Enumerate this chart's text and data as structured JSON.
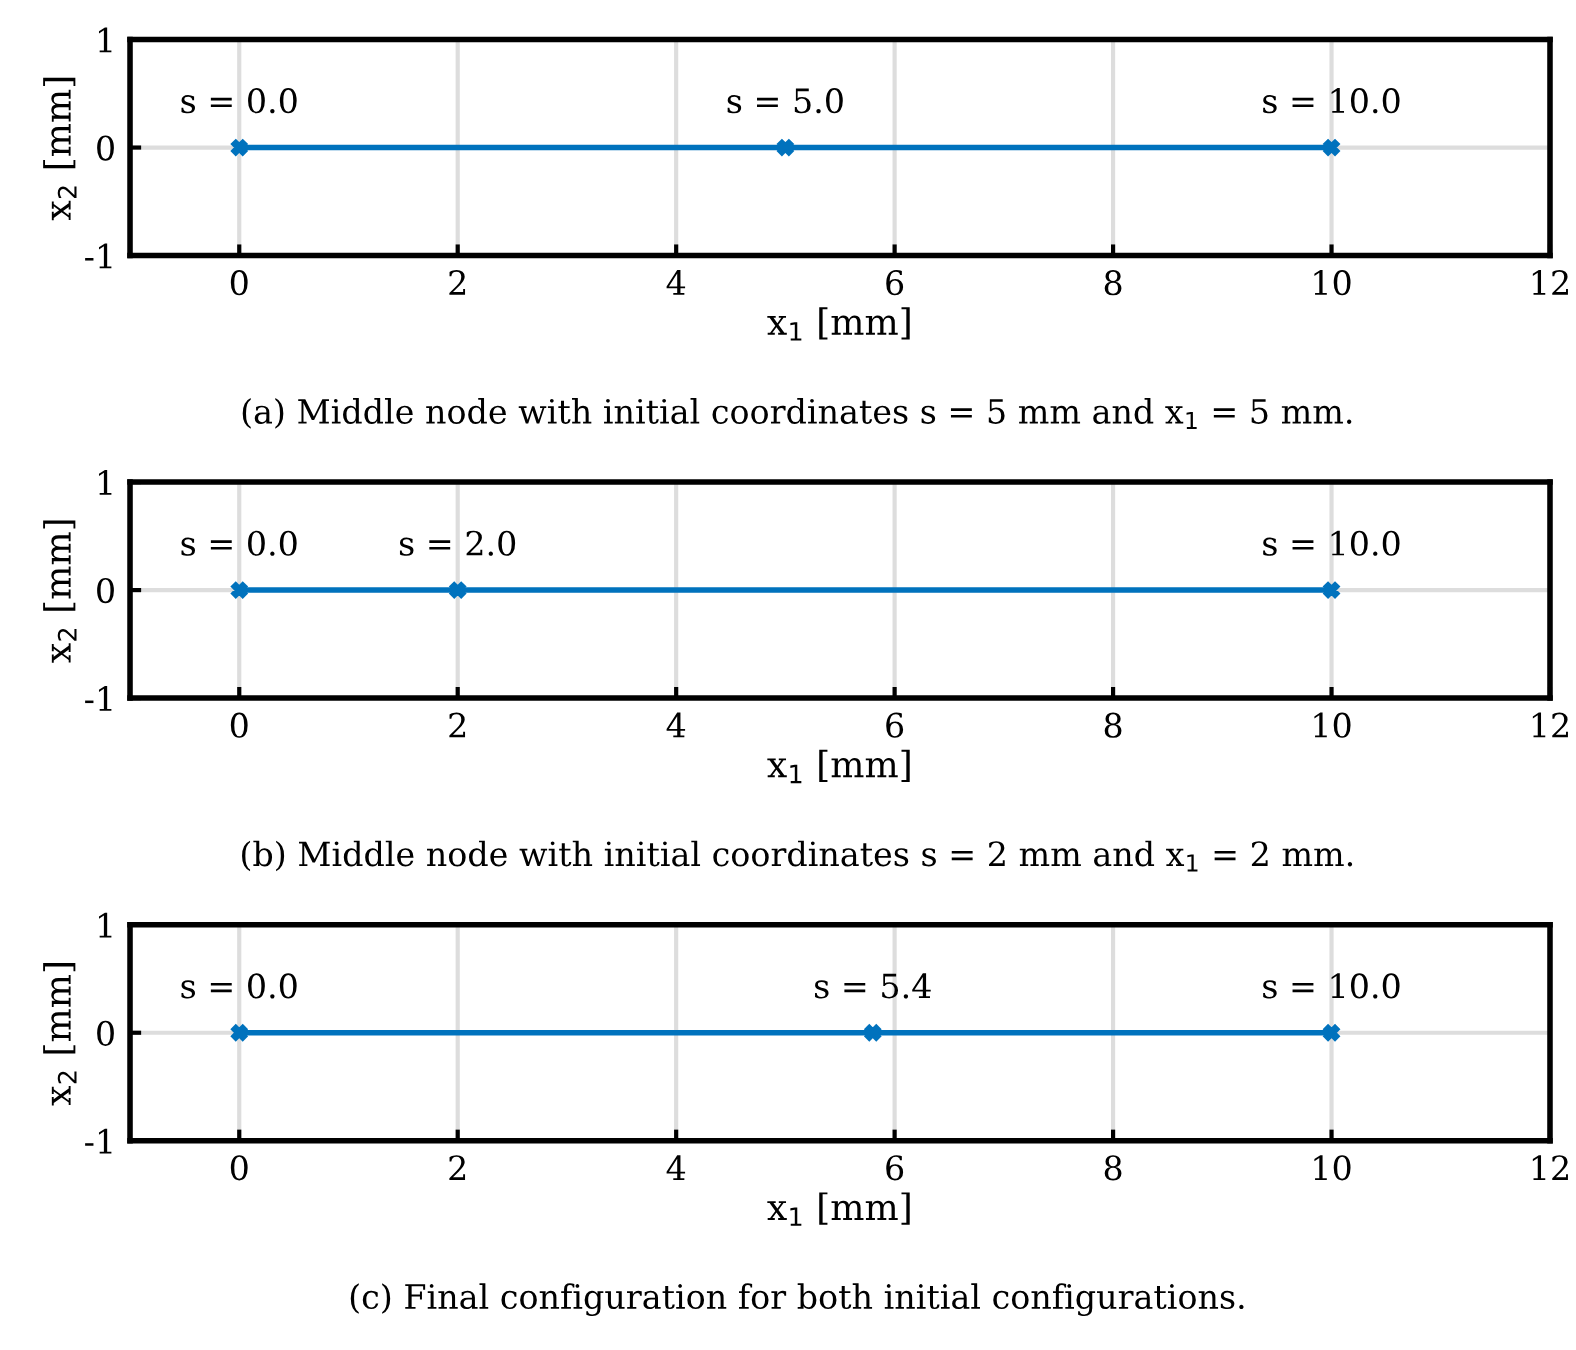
{
  "chart_data": [
    {
      "type": "line",
      "x": [
        0,
        5,
        10
      ],
      "series": [
        {
          "color": "#0072bd",
          "values": [
            0,
            0,
            0
          ]
        }
      ],
      "xlim": [
        -1,
        12
      ],
      "xticks": [
        0,
        2,
        4,
        6,
        8,
        10,
        12
      ],
      "ylim": [
        -1,
        1
      ],
      "yticks": [
        -1,
        0,
        1
      ],
      "xlabel": "x$_{1}$ [mm]",
      "ylabel": "x$_{2}$ [mm]",
      "grid": true,
      "marker": "cross",
      "line_style": "solid",
      "annotations": [
        {
          "text": "s = 0.0",
          "x": 0,
          "y": 0
        },
        {
          "text": "s = 5.0",
          "x": 5,
          "y": 0
        },
        {
          "text": "s = 10.0",
          "x": 10,
          "y": 0
        },
        "(a) Middle node with initial coordinates s = 5 mm and x$_{1}$ = 5 mm."
      ]
    },
    {
      "type": "line",
      "x": [
        0,
        2,
        10
      ],
      "series": [
        {
          "color": "#0072bd",
          "values": [
            0,
            0,
            0
          ]
        }
      ],
      "xlim": [
        -1,
        12
      ],
      "xticks": [
        0,
        2,
        4,
        6,
        8,
        10,
        12
      ],
      "ylim": [
        -1,
        1
      ],
      "yticks": [
        -1,
        0,
        1
      ],
      "xlabel": "x$_{1}$ [mm]",
      "ylabel": "x$_{2}$ [mm]",
      "grid": true,
      "marker": "cross",
      "line_style": "solid",
      "annotations": [
        {
          "text": "s = 0.0",
          "x": 0,
          "y": 0
        },
        {
          "text": "s = 2.0",
          "x": 2,
          "y": 0
        },
        {
          "text": "s = 10.0",
          "x": 10,
          "y": 0
        },
        "(b) Middle node with initial coordinates s = 2 mm and x$_{1}$ = 2 mm."
      ]
    },
    {
      "type": "line",
      "x": [
        0,
        5.8,
        10
      ],
      "series": [
        {
          "color": "#0072bd",
          "values": [
            0,
            0,
            0
          ]
        }
      ],
      "xlim": [
        -1,
        12
      ],
      "xticks": [
        0,
        2,
        4,
        6,
        8,
        10,
        12
      ],
      "ylim": [
        -1,
        1
      ],
      "yticks": [
        -1,
        0,
        1
      ],
      "xlabel": "x$_{1}$ [mm]",
      "ylabel": "x$_{2}$ [mm]",
      "grid": true,
      "marker": "cross",
      "line_style": "solid",
      "annotations": [
        {
          "text": "s = 0.0",
          "x": 0,
          "y": 0
        },
        {
          "text": "s = 5.4",
          "x": 5.8,
          "y": 0
        },
        {
          "text": "s = 10.0",
          "x": 10,
          "y": 0
        },
        "(c) Final configuration for both initial configurations."
      ]
    }
  ]
}
